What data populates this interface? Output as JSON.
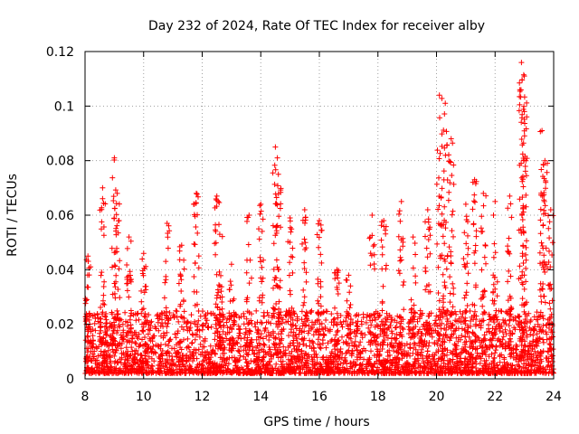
{
  "chart_data": {
    "type": "scatter",
    "title": "Day 232 of 2024, Rate Of TEC Index for receiver alby",
    "xlabel": "GPS time / hours",
    "ylabel": "ROTI / TECUs",
    "xlim": [
      8,
      24
    ],
    "ylim": [
      0,
      0.12
    ],
    "x_ticks": [
      "8",
      "10",
      "12",
      "14",
      "16",
      "18",
      "20",
      "22",
      "24"
    ],
    "y_ticks": [
      "0",
      "0.02",
      "0.04",
      "0.06",
      "0.08",
      "0.1",
      "0.12"
    ],
    "grid": true,
    "marker": "+",
    "color": "#ff0000",
    "dense_band": {
      "x_range": [
        8,
        24
      ],
      "y_range": [
        0.002,
        0.025
      ]
    },
    "peaks": [
      {
        "x": 8.1,
        "y": 0.045
      },
      {
        "x": 8.6,
        "y": 0.07
      },
      {
        "x": 9.0,
        "y": 0.081
      },
      {
        "x": 9.1,
        "y": 0.068
      },
      {
        "x": 9.5,
        "y": 0.052
      },
      {
        "x": 10.0,
        "y": 0.046
      },
      {
        "x": 10.8,
        "y": 0.057
      },
      {
        "x": 11.3,
        "y": 0.049
      },
      {
        "x": 11.8,
        "y": 0.068
      },
      {
        "x": 12.5,
        "y": 0.067
      },
      {
        "x": 12.6,
        "y": 0.053
      },
      {
        "x": 13.0,
        "y": 0.042
      },
      {
        "x": 13.6,
        "y": 0.06
      },
      {
        "x": 14.0,
        "y": 0.064
      },
      {
        "x": 14.5,
        "y": 0.085
      },
      {
        "x": 14.6,
        "y": 0.075
      },
      {
        "x": 15.0,
        "y": 0.059
      },
      {
        "x": 15.5,
        "y": 0.062
      },
      {
        "x": 16.0,
        "y": 0.058
      },
      {
        "x": 16.6,
        "y": 0.04
      },
      {
        "x": 17.0,
        "y": 0.038
      },
      {
        "x": 17.8,
        "y": 0.06
      },
      {
        "x": 18.2,
        "y": 0.058
      },
      {
        "x": 18.8,
        "y": 0.065
      },
      {
        "x": 19.2,
        "y": 0.052
      },
      {
        "x": 19.7,
        "y": 0.062
      },
      {
        "x": 20.1,
        "y": 0.104
      },
      {
        "x": 20.3,
        "y": 0.101
      },
      {
        "x": 20.5,
        "y": 0.088
      },
      {
        "x": 21.0,
        "y": 0.064
      },
      {
        "x": 21.3,
        "y": 0.073
      },
      {
        "x": 21.6,
        "y": 0.068
      },
      {
        "x": 22.0,
        "y": 0.065
      },
      {
        "x": 22.5,
        "y": 0.067
      },
      {
        "x": 22.9,
        "y": 0.116
      },
      {
        "x": 23.0,
        "y": 0.111
      },
      {
        "x": 23.0,
        "y": 0.098
      },
      {
        "x": 23.6,
        "y": 0.091
      },
      {
        "x": 23.7,
        "y": 0.08
      },
      {
        "x": 23.9,
        "y": 0.062
      }
    ]
  }
}
